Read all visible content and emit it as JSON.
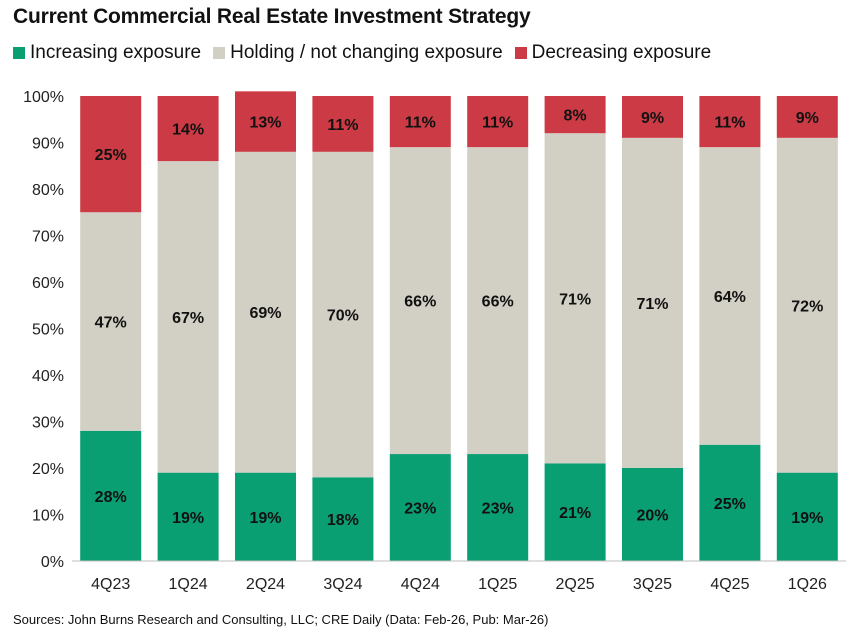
{
  "chart_data": {
    "type": "bar",
    "stacked": true,
    "title": "Current Commercial Real Estate Investment Strategy",
    "categories": [
      "4Q23",
      "1Q24",
      "2Q24",
      "3Q24",
      "4Q24",
      "1Q25",
      "2Q25",
      "3Q25",
      "4Q25",
      "1Q26"
    ],
    "series": [
      {
        "name": "Increasing exposure",
        "color": "#0a9e73",
        "values": [
          28,
          19,
          19,
          18,
          23,
          23,
          21,
          20,
          25,
          19
        ],
        "labels": [
          "28%",
          "19%",
          "19%",
          "18%",
          "23%",
          "23%",
          "21%",
          "20%",
          "25%",
          "19%"
        ]
      },
      {
        "name": "Holding / not changing exposure",
        "color": "#d2cfc4",
        "values": [
          47,
          67,
          69,
          70,
          66,
          66,
          71,
          71,
          64,
          72
        ],
        "labels": [
          "47%",
          "67%",
          "69%",
          "70%",
          "66%",
          "66%",
          "71%",
          "71%",
          "64%",
          "72%"
        ]
      },
      {
        "name": "Decreasing exposure",
        "color": "#cc3b45",
        "values": [
          25,
          14,
          13,
          11,
          11,
          11,
          8,
          9,
          11,
          9
        ],
        "labels": [
          "25%",
          "14%",
          "13%",
          "11%",
          "11%",
          "11%",
          "8%",
          "9%",
          "11%",
          "9%"
        ]
      }
    ],
    "ylim": [
      0,
      100
    ],
    "yticks": [
      "0%",
      "10%",
      "20%",
      "30%",
      "40%",
      "50%",
      "60%",
      "70%",
      "80%",
      "90%",
      "100%"
    ],
    "legend_position": "top-left",
    "grid": false
  },
  "source": "Sources: John Burns Research and Consulting, LLC; CRE Daily (Data: Feb-26, Pub: Mar-26)"
}
